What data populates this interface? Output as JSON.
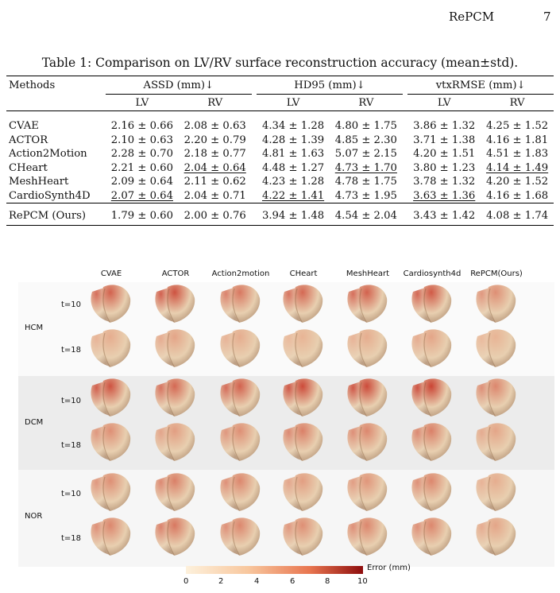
{
  "header": {
    "title": "RePCM",
    "page": "7"
  },
  "table": {
    "caption": "Table 1: Comparison on LV/RV surface reconstruction accuracy (mean±std).",
    "methods_label": "Methods",
    "groups": [
      "ASSD (mm)↓",
      "HD95 (mm)↓",
      "vtxRMSE (mm)↓"
    ],
    "subheaders": [
      "LV",
      "RV",
      "LV",
      "RV",
      "LV",
      "RV"
    ],
    "rows": [
      {
        "method": "CVAE",
        "cells": [
          "2.16 ± 0.66",
          "2.08 ± 0.63",
          "4.34 ± 1.28",
          "4.80 ± 1.75",
          "3.86 ± 1.32",
          "4.25 ± 1.52"
        ],
        "underline": []
      },
      {
        "method": "ACTOR",
        "cells": [
          "2.10 ± 0.63",
          "2.20 ± 0.79",
          "4.28 ± 1.39",
          "4.85 ± 2.30",
          "3.71 ± 1.38",
          "4.16 ± 1.81"
        ],
        "underline": []
      },
      {
        "method": "Action2Motion",
        "cells": [
          "2.28 ± 0.70",
          "2.18 ± 0.77",
          "4.81 ± 1.63",
          "5.07 ± 2.15",
          "4.20 ± 1.51",
          "4.51 ± 1.83"
        ],
        "underline": []
      },
      {
        "method": "CHeart",
        "cells": [
          "2.21 ± 0.60",
          "2.04 ± 0.64",
          "4.48 ± 1.27",
          "4.73 ± 1.70",
          "3.80 ± 1.23",
          "4.14 ± 1.49"
        ],
        "underline": [
          1,
          3,
          5
        ]
      },
      {
        "method": "MeshHeart",
        "cells": [
          "2.09 ± 0.64",
          "2.11 ± 0.62",
          "4.23 ± 1.28",
          "4.78 ± 1.75",
          "3.78 ± 1.32",
          "4.20 ± 1.52"
        ],
        "underline": []
      },
      {
        "method": "CardioSynth4D",
        "cells": [
          "2.07 ± 0.64",
          "2.04 ± 0.71",
          "4.22 ± 1.41",
          "4.73 ± 1.95",
          "3.63 ± 1.36",
          "4.16 ± 1.68"
        ],
        "underline": [
          0,
          2,
          4
        ]
      }
    ],
    "ours": {
      "method": "RePCM (Ours)",
      "cells": [
        "1.79 ± 0.60",
        "2.00 ± 0.76",
        "3.94 ± 1.48",
        "4.54 ± 2.04",
        "3.43 ± 1.42",
        "4.08 ± 1.74"
      ]
    }
  },
  "figure": {
    "columns": [
      "CVAE",
      "ACTOR",
      "Action2motion",
      "CHeart",
      "MeshHeart",
      "Cardiosynth4d",
      "RePCM(Ours)"
    ],
    "groups": [
      {
        "label": "HCM",
        "times": [
          "t=10",
          "t=18"
        ]
      },
      {
        "label": "DCM",
        "times": [
          "t=10",
          "t=18"
        ]
      },
      {
        "label": "NOR",
        "times": [
          "t=10",
          "t=18"
        ]
      }
    ],
    "colorbar": {
      "label": "Error (mm)",
      "ticks": [
        "0",
        "2",
        "4",
        "6",
        "8",
        "10"
      ],
      "colors": [
        "#fdf1dc",
        "#f8c79e",
        "#e8754f",
        "#8e0d0d"
      ]
    }
  }
}
